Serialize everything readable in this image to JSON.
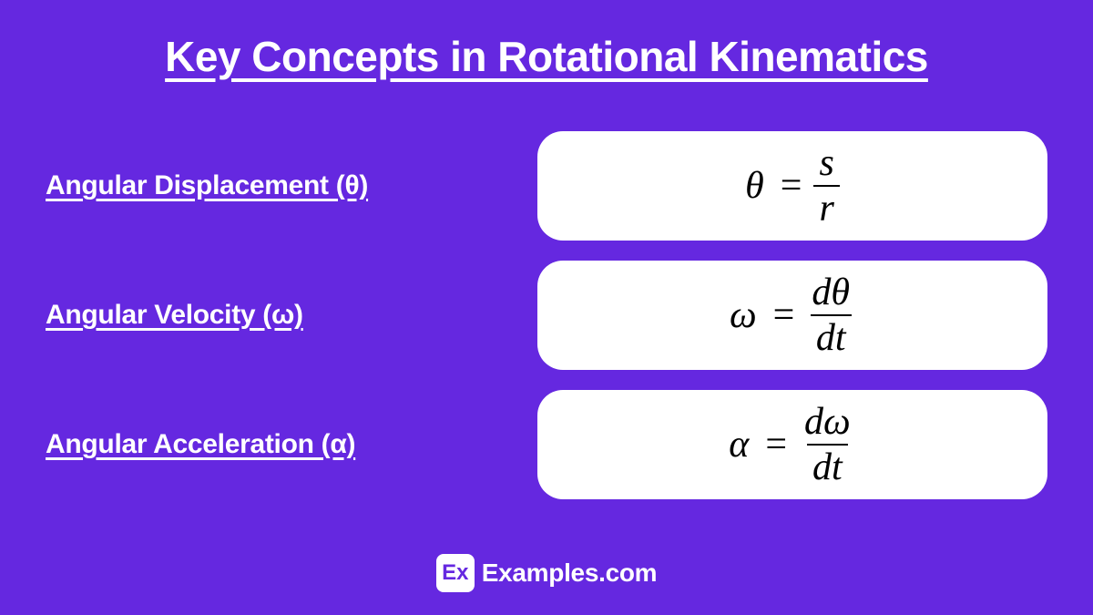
{
  "title": "Key Concepts in Rotational Kinematics",
  "background_color": "#6528e0",
  "text_color": "#ffffff",
  "formula_box_bg": "#ffffff",
  "formula_box_radius": 28,
  "title_fontsize": 46,
  "label_fontsize": 30,
  "formula_fontsize": 42,
  "concepts": [
    {
      "label": "Angular Displacement (θ)",
      "formula_lhs": "θ",
      "formula_num": "s",
      "formula_den": "r"
    },
    {
      "label": "Angular Velocity (ω)",
      "formula_lhs": "ω",
      "formula_num": "dθ",
      "formula_den": "dt"
    },
    {
      "label": "Angular Acceleration (α)",
      "formula_lhs": "α",
      "formula_num": "dω",
      "formula_den": "dt"
    }
  ],
  "brand": {
    "logo_text": "Ex",
    "name": "Examples.com"
  }
}
